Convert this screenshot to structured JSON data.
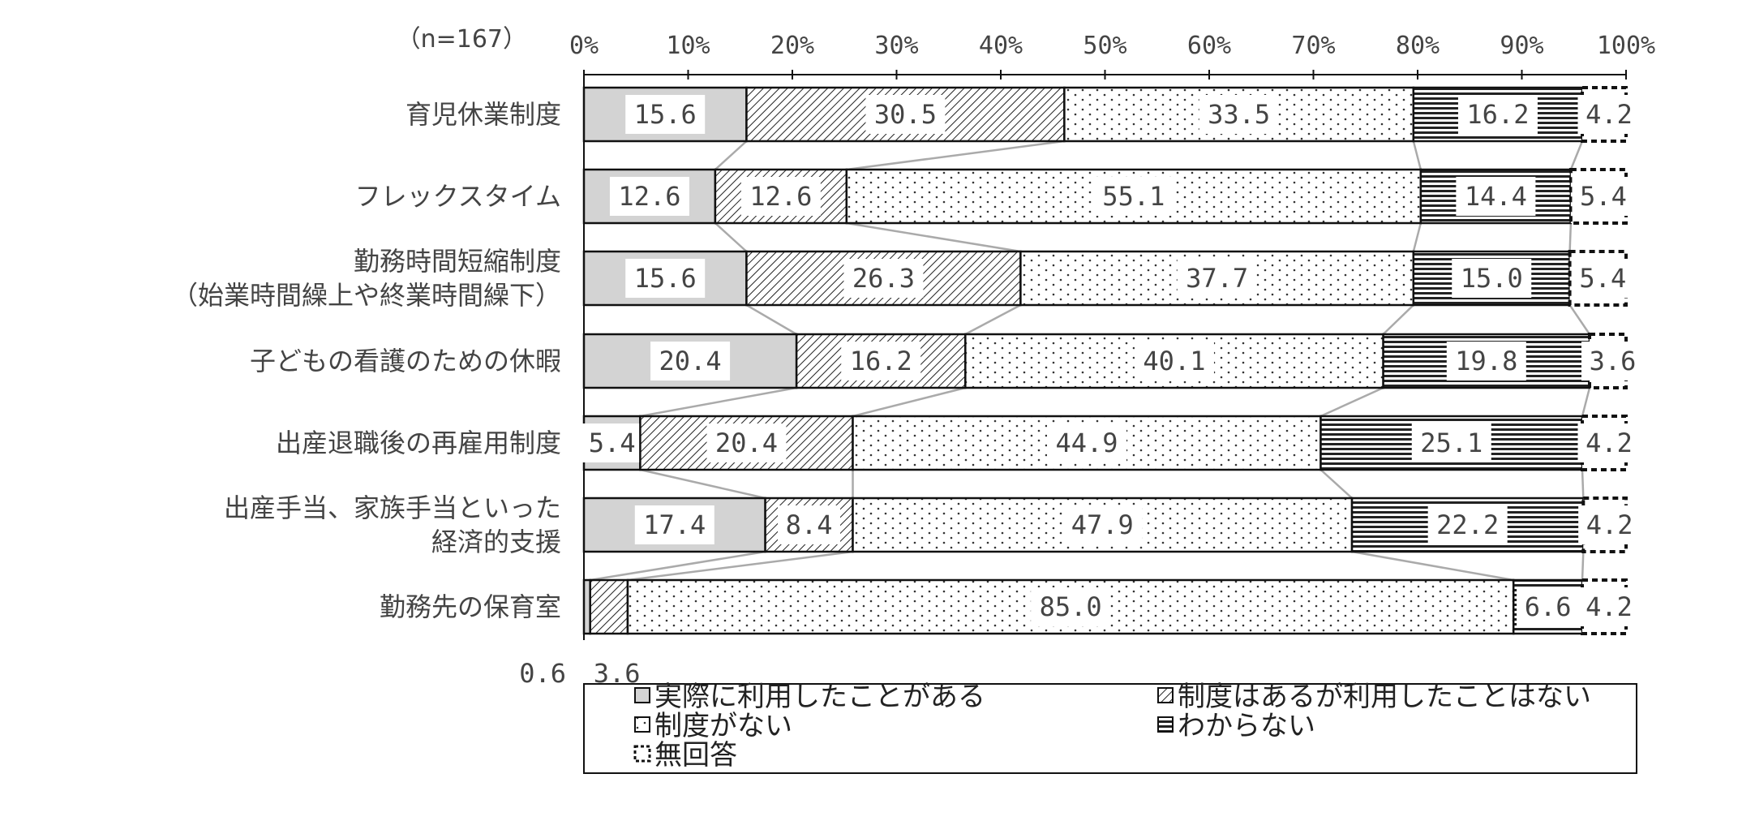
{
  "chart_data": {
    "type": "bar",
    "orientation": "horizontal-stacked-100",
    "sample_note": "（n=167）",
    "categories": [
      [
        "育児休業制度"
      ],
      [
        "フレックスタイム"
      ],
      [
        "勤務時間短縮制度",
        "（始業時間繰上や終業時間繰下）"
      ],
      [
        "子どもの看護のための休暇"
      ],
      [
        "出産退職後の再雇用制度"
      ],
      [
        "出産手当、家族手当といった",
        "経済的支援"
      ],
      [
        "勤務先の保育室"
      ]
    ],
    "series": [
      {
        "name": "実際に利用したことがある",
        "color": "#d3d3d3",
        "pattern": "solid-gray",
        "values": [
          15.6,
          12.6,
          15.6,
          20.4,
          5.4,
          17.4,
          0.6
        ]
      },
      {
        "name": "制度はあるが利用したことはない",
        "color": "#ffffff",
        "pattern": "diagonal-hatch",
        "values": [
          30.5,
          12.6,
          26.3,
          16.2,
          20.4,
          8.4,
          3.6
        ]
      },
      {
        "name": "制度がない",
        "color": "#ffffff",
        "pattern": "dots",
        "values": [
          33.5,
          55.1,
          37.7,
          40.1,
          44.9,
          47.9,
          85.0
        ]
      },
      {
        "name": "わからない",
        "color": "#ffffff",
        "pattern": "horizontal-lines",
        "values": [
          16.2,
          14.4,
          15.0,
          19.8,
          25.1,
          22.2,
          6.6
        ]
      },
      {
        "name": "無回答",
        "color": "#ffffff",
        "pattern": "dashed-outline",
        "values": [
          4.2,
          5.4,
          5.4,
          3.6,
          4.2,
          4.2,
          4.2
        ]
      }
    ],
    "value_labels": [
      [
        "15.6",
        "30.5",
        "33.5",
        "16.2",
        "4.2"
      ],
      [
        "12.6",
        "12.6",
        "55.1",
        "14.4",
        "5.4"
      ],
      [
        "15.6",
        "26.3",
        "37.7",
        "15.0",
        "5.4"
      ],
      [
        "20.4",
        "16.2",
        "40.1",
        "19.8",
        "3.6"
      ],
      [
        "5.4",
        "20.4",
        "44.9",
        "25.1",
        "4.2"
      ],
      [
        "17.4",
        "8.4",
        "47.9",
        "22.2",
        "4.2"
      ],
      [
        "0.6",
        "3.6",
        "85.0",
        "6.6",
        "4.2"
      ]
    ],
    "xticks": [
      "0%",
      "10%",
      "20%",
      "30%",
      "40%",
      "50%",
      "60%",
      "70%",
      "80%",
      "90%",
      "100%"
    ],
    "xlim": [
      0,
      100
    ],
    "grid": false,
    "connector_lines": true,
    "legend_position": "bottom"
  }
}
